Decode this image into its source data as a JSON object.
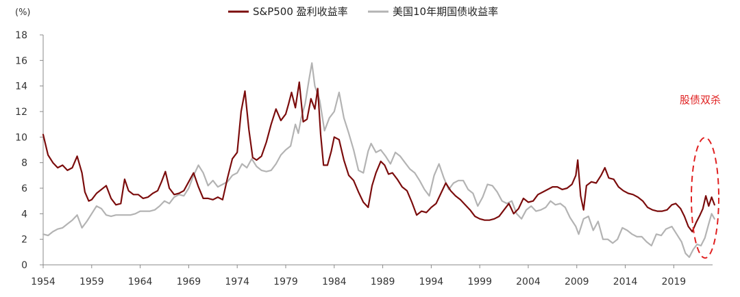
{
  "chart_data": {
    "type": "line",
    "title": "",
    "unit_label": "(%)",
    "xlabel": "",
    "ylabel": "",
    "xlim": [
      1954,
      2023
    ],
    "ylim": [
      0,
      18
    ],
    "y_ticks": [
      0,
      2,
      4,
      6,
      8,
      10,
      12,
      14,
      16,
      18
    ],
    "x_ticks": [
      1954,
      1959,
      1964,
      1969,
      1974,
      1979,
      1984,
      1989,
      1994,
      1999,
      2004,
      2009,
      2014,
      2019
    ],
    "grid": false,
    "legend_position": "top-center",
    "series": [
      {
        "name": "S&P500 盈利收益率",
        "color": "#7b0c0c",
        "x": [
          1954.0,
          1954.5,
          1955.0,
          1955.5,
          1956.0,
          1956.5,
          1957.0,
          1957.5,
          1958.0,
          1958.3,
          1958.7,
          1959.0,
          1959.5,
          1960.0,
          1960.5,
          1961.0,
          1961.5,
          1962.0,
          1962.4,
          1962.8,
          1963.3,
          1963.8,
          1964.3,
          1964.8,
          1965.3,
          1965.8,
          1966.2,
          1966.6,
          1967.0,
          1967.5,
          1968.0,
          1968.5,
          1969.0,
          1969.5,
          1970.0,
          1970.5,
          1971.0,
          1971.5,
          1972.0,
          1972.5,
          1973.0,
          1973.5,
          1974.0,
          1974.4,
          1974.8,
          1975.2,
          1975.6,
          1976.0,
          1976.5,
          1977.0,
          1977.5,
          1978.0,
          1978.5,
          1979.0,
          1979.3,
          1979.6,
          1980.0,
          1980.4,
          1980.8,
          1981.2,
          1981.6,
          1982.0,
          1982.3,
          1982.6,
          1982.9,
          1983.3,
          1983.7,
          1984.0,
          1984.5,
          1985.0,
          1985.5,
          1986.0,
          1986.5,
          1987.0,
          1987.5,
          1987.9,
          1988.3,
          1988.8,
          1989.2,
          1989.6,
          1990.0,
          1990.5,
          1991.0,
          1991.5,
          1992.0,
          1992.5,
          1993.0,
          1993.5,
          1994.0,
          1994.5,
          1995.0,
          1995.5,
          1996.0,
          1996.5,
          1997.0,
          1997.5,
          1998.0,
          1998.5,
          1999.0,
          1999.5,
          2000.0,
          2000.5,
          2001.0,
          2001.5,
          2002.0,
          2002.5,
          2003.0,
          2003.5,
          2004.0,
          2004.5,
          2005.0,
          2005.5,
          2006.0,
          2006.5,
          2007.0,
          2007.5,
          2008.0,
          2008.5,
          2008.9,
          2009.1,
          2009.4,
          2009.7,
          2010.0,
          2010.5,
          2011.0,
          2011.5,
          2011.9,
          2012.3,
          2012.8,
          2013.3,
          2013.8,
          2014.3,
          2014.8,
          2015.3,
          2015.8,
          2016.3,
          2016.8,
          2017.3,
          2017.8,
          2018.3,
          2018.8,
          2019.2,
          2019.7,
          2020.1,
          2020.5,
          2020.9,
          2021.3,
          2021.7,
          2022.0,
          2022.3,
          2022.6,
          2022.9,
          2023.2
        ],
        "y": [
          10.2,
          8.6,
          8.0,
          7.6,
          7.8,
          7.4,
          7.6,
          8.5,
          7.2,
          5.7,
          5.0,
          5.1,
          5.6,
          5.9,
          6.2,
          5.2,
          4.7,
          4.8,
          6.7,
          5.8,
          5.5,
          5.5,
          5.2,
          5.3,
          5.6,
          5.8,
          6.5,
          7.3,
          6.0,
          5.5,
          5.6,
          5.8,
          6.5,
          7.2,
          6.1,
          5.2,
          5.2,
          5.1,
          5.3,
          5.1,
          6.8,
          8.3,
          8.8,
          12.0,
          13.6,
          10.6,
          8.4,
          8.2,
          8.5,
          9.6,
          11.0,
          12.2,
          11.3,
          11.8,
          12.6,
          13.5,
          12.3,
          14.3,
          11.2,
          11.4,
          13.0,
          12.2,
          13.8,
          10.2,
          7.8,
          7.8,
          8.9,
          10.0,
          9.8,
          8.2,
          7.0,
          6.6,
          5.7,
          4.9,
          4.5,
          6.2,
          7.2,
          8.1,
          7.8,
          7.1,
          7.2,
          6.7,
          6.1,
          5.8,
          4.9,
          3.9,
          4.2,
          4.1,
          4.5,
          4.8,
          5.6,
          6.4,
          5.8,
          5.4,
          5.1,
          4.7,
          4.3,
          3.8,
          3.6,
          3.5,
          3.5,
          3.6,
          3.8,
          4.3,
          4.8,
          4.0,
          4.4,
          5.2,
          4.9,
          5.0,
          5.5,
          5.7,
          5.9,
          6.1,
          6.1,
          5.9,
          6.0,
          6.3,
          7.0,
          8.2,
          5.4,
          4.3,
          6.2,
          6.5,
          6.4,
          7.0,
          7.6,
          6.8,
          6.7,
          6.1,
          5.8,
          5.6,
          5.5,
          5.3,
          5.0,
          4.5,
          4.3,
          4.2,
          4.2,
          4.3,
          4.7,
          4.8,
          4.4,
          3.8,
          3.0,
          2.6,
          3.3,
          3.9,
          4.4,
          5.4,
          4.6,
          5.3,
          4.7
        ]
      },
      {
        "name": "美国10年期国债收益率",
        "color": "#b3b3b3",
        "x": [
          1954.0,
          1954.5,
          1955.0,
          1955.5,
          1956.0,
          1956.5,
          1957.0,
          1957.5,
          1958.0,
          1958.5,
          1959.0,
          1959.5,
          1960.0,
          1960.5,
          1961.0,
          1961.5,
          1962.0,
          1962.5,
          1963.0,
          1963.5,
          1964.0,
          1964.5,
          1965.0,
          1965.5,
          1966.0,
          1966.5,
          1967.0,
          1967.5,
          1968.0,
          1968.5,
          1969.0,
          1969.5,
          1970.0,
          1970.5,
          1971.0,
          1971.5,
          1972.0,
          1972.5,
          1973.0,
          1973.5,
          1974.0,
          1974.5,
          1975.0,
          1975.5,
          1976.0,
          1976.5,
          1977.0,
          1977.5,
          1978.0,
          1978.5,
          1979.0,
          1979.5,
          1980.0,
          1980.3,
          1980.6,
          1981.0,
          1981.4,
          1981.7,
          1982.0,
          1982.5,
          1983.0,
          1983.5,
          1984.0,
          1984.5,
          1985.0,
          1985.5,
          1986.0,
          1986.5,
          1987.0,
          1987.5,
          1987.8,
          1988.3,
          1988.8,
          1989.3,
          1989.8,
          1990.3,
          1990.8,
          1991.3,
          1991.8,
          1992.3,
          1992.8,
          1993.3,
          1993.8,
          1994.3,
          1994.8,
          1995.3,
          1995.8,
          1996.3,
          1996.8,
          1997.3,
          1997.8,
          1998.3,
          1998.8,
          1999.3,
          1999.8,
          2000.3,
          2000.8,
          2001.3,
          2001.8,
          2002.3,
          2002.8,
          2003.3,
          2003.8,
          2004.3,
          2004.8,
          2005.3,
          2005.8,
          2006.3,
          2006.8,
          2007.3,
          2007.8,
          2008.3,
          2008.9,
          2009.2,
          2009.7,
          2010.2,
          2010.7,
          2011.2,
          2011.7,
          2012.2,
          2012.7,
          2013.2,
          2013.7,
          2014.2,
          2014.7,
          2015.2,
          2015.7,
          2016.2,
          2016.7,
          2017.2,
          2017.7,
          2018.2,
          2018.8,
          2019.3,
          2019.8,
          2020.2,
          2020.6,
          2021.0,
          2021.4,
          2021.8,
          2022.2,
          2022.6,
          2022.9,
          2023.2
        ],
        "y": [
          2.4,
          2.3,
          2.6,
          2.8,
          2.9,
          3.2,
          3.5,
          3.9,
          2.9,
          3.4,
          4.0,
          4.6,
          4.4,
          3.9,
          3.8,
          3.9,
          3.9,
          3.9,
          3.9,
          4.0,
          4.2,
          4.2,
          4.2,
          4.3,
          4.6,
          5.0,
          4.8,
          5.3,
          5.5,
          5.4,
          6.0,
          7.0,
          7.8,
          7.2,
          6.2,
          6.6,
          6.1,
          6.3,
          6.5,
          7.0,
          7.2,
          7.9,
          7.6,
          8.3,
          7.7,
          7.4,
          7.3,
          7.4,
          7.9,
          8.6,
          9.0,
          9.3,
          11.0,
          10.3,
          11.5,
          12.6,
          14.5,
          15.8,
          14.0,
          12.9,
          10.5,
          11.5,
          12.0,
          13.5,
          11.5,
          10.3,
          9.0,
          7.4,
          7.2,
          8.9,
          9.5,
          8.8,
          9.0,
          8.5,
          7.9,
          8.8,
          8.5,
          8.0,
          7.5,
          7.2,
          6.6,
          5.9,
          5.4,
          7.0,
          7.9,
          6.8,
          5.9,
          6.4,
          6.6,
          6.6,
          5.9,
          5.6,
          4.6,
          5.3,
          6.3,
          6.2,
          5.7,
          5.0,
          4.8,
          5.0,
          4.0,
          3.6,
          4.3,
          4.6,
          4.2,
          4.3,
          4.5,
          5.0,
          4.7,
          4.8,
          4.5,
          3.7,
          3.0,
          2.4,
          3.6,
          3.8,
          2.7,
          3.4,
          2.0,
          2.0,
          1.7,
          2.0,
          2.9,
          2.7,
          2.4,
          2.2,
          2.2,
          1.8,
          1.5,
          2.4,
          2.3,
          2.8,
          3.0,
          2.4,
          1.8,
          0.9,
          0.6,
          1.2,
          1.6,
          1.5,
          2.1,
          3.2,
          4.0,
          3.6
        ]
      }
    ],
    "annotations": [
      {
        "text": "股债双杀",
        "color": "#e02020"
      }
    ]
  }
}
